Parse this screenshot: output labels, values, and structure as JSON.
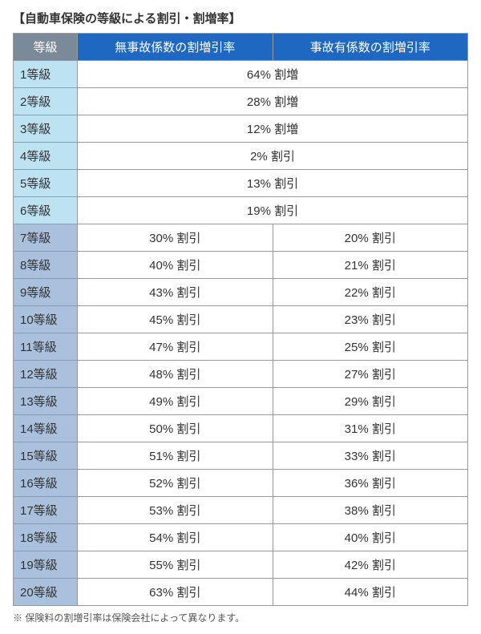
{
  "title": "【自動車保険の等級による割引・割増率】",
  "footnote": "※ 保険料の割増引率は保険会社によって異なります。",
  "colors": {
    "header_grade_bg": "#7b8a99",
    "header_rate_bg": "#1f68c1",
    "light_blue": "#bde3f2",
    "steel_blue": "#a9c1dd",
    "border": "#999999"
  },
  "headers": {
    "grade": "等級",
    "no_accident": "無事故係数の割増引率",
    "accident": "事故有係数の割増引率"
  },
  "rows_merged": [
    {
      "grade": "1等級",
      "value": "64% 割増",
      "grade_bg": "#bde3f2"
    },
    {
      "grade": "2等級",
      "value": "28% 割増",
      "grade_bg": "#bde3f2"
    },
    {
      "grade": "3等級",
      "value": "12% 割増",
      "grade_bg": "#bde3f2"
    },
    {
      "grade": "4等級",
      "value": "2% 割引",
      "grade_bg": "#bde3f2"
    },
    {
      "grade": "5等級",
      "value": "13% 割引",
      "grade_bg": "#bde3f2"
    },
    {
      "grade": "6等級",
      "value": "19% 割引",
      "grade_bg": "#bde3f2"
    }
  ],
  "rows_split": [
    {
      "grade": "7等級",
      "no_accident": "30% 割引",
      "accident": "20% 割引",
      "grade_bg": "#a9c1dd"
    },
    {
      "grade": "8等級",
      "no_accident": "40% 割引",
      "accident": "21% 割引",
      "grade_bg": "#a9c1dd"
    },
    {
      "grade": "9等級",
      "no_accident": "43% 割引",
      "accident": "22% 割引",
      "grade_bg": "#a9c1dd"
    },
    {
      "grade": "10等級",
      "no_accident": "45% 割引",
      "accident": "23% 割引",
      "grade_bg": "#a9c1dd"
    },
    {
      "grade": "11等級",
      "no_accident": "47% 割引",
      "accident": "25% 割引",
      "grade_bg": "#a9c1dd"
    },
    {
      "grade": "12等級",
      "no_accident": "48% 割引",
      "accident": "27% 割引",
      "grade_bg": "#a9c1dd"
    },
    {
      "grade": "13等級",
      "no_accident": "49% 割引",
      "accident": "29% 割引",
      "grade_bg": "#a9c1dd"
    },
    {
      "grade": "14等級",
      "no_accident": "50% 割引",
      "accident": "31% 割引",
      "grade_bg": "#a9c1dd"
    },
    {
      "grade": "15等級",
      "no_accident": "51% 割引",
      "accident": "33% 割引",
      "grade_bg": "#a9c1dd"
    },
    {
      "grade": "16等級",
      "no_accident": "52% 割引",
      "accident": "36% 割引",
      "grade_bg": "#a9c1dd"
    },
    {
      "grade": "17等級",
      "no_accident": "53% 割引",
      "accident": "38% 割引",
      "grade_bg": "#a9c1dd"
    },
    {
      "grade": "18等級",
      "no_accident": "54% 割引",
      "accident": "40% 割引",
      "grade_bg": "#a9c1dd"
    },
    {
      "grade": "19等級",
      "no_accident": "55% 割引",
      "accident": "42% 割引",
      "grade_bg": "#a9c1dd"
    },
    {
      "grade": "20等級",
      "no_accident": "63% 割引",
      "accident": "44% 割引",
      "grade_bg": "#a9c1dd"
    }
  ]
}
